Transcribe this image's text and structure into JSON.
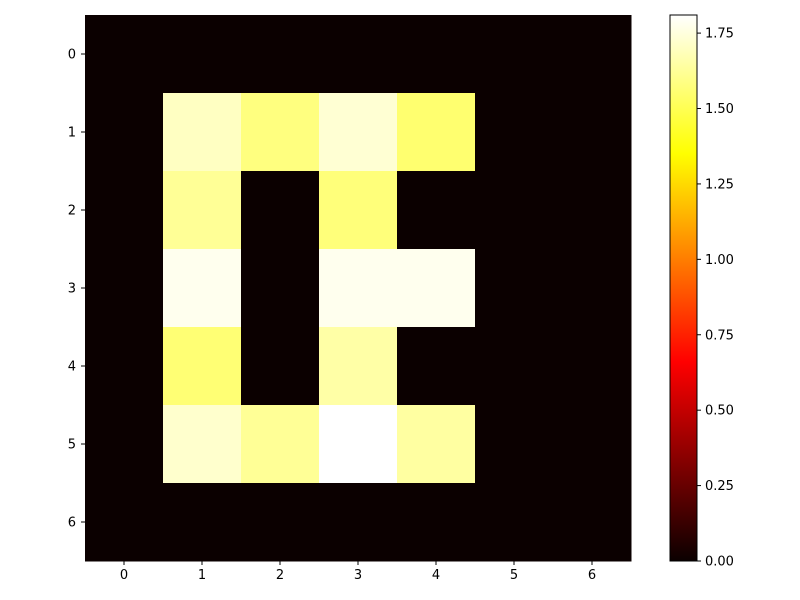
{
  "chart_data": {
    "type": "heatmap",
    "x": [
      0,
      1,
      2,
      3,
      4,
      5,
      6
    ],
    "y": [
      0,
      1,
      2,
      3,
      4,
      5,
      6
    ],
    "values": [
      [
        0,
        0,
        0,
        0,
        0,
        0,
        0
      ],
      [
        0,
        1.7,
        1.58,
        1.73,
        1.55,
        0,
        0
      ],
      [
        0,
        1.62,
        0,
        1.57,
        0,
        0,
        0
      ],
      [
        0,
        1.78,
        0,
        1.78,
        1.78,
        0,
        0
      ],
      [
        0,
        1.56,
        0,
        1.65,
        0,
        0,
        0
      ],
      [
        0,
        1.72,
        1.62,
        1.81,
        1.64,
        0,
        0
      ],
      [
        0,
        0,
        0,
        0,
        0,
        0,
        0
      ]
    ],
    "xticks": [
      "0",
      "1",
      "2",
      "3",
      "4",
      "5",
      "6"
    ],
    "yticks": [
      "0",
      "1",
      "2",
      "3",
      "4",
      "5",
      "6"
    ],
    "colormap": "hot",
    "colorbar": {
      "vmin": 0.0,
      "vmax": 1.81,
      "ticks": [
        0.0,
        0.25,
        0.5,
        0.75,
        1.0,
        1.25,
        1.5,
        1.75
      ],
      "tick_labels": [
        "0.00",
        "0.25",
        "0.50",
        "0.75",
        "1.00",
        "1.25",
        "1.50",
        "1.75"
      ]
    },
    "title": "",
    "xlabel": "",
    "ylabel": ""
  }
}
